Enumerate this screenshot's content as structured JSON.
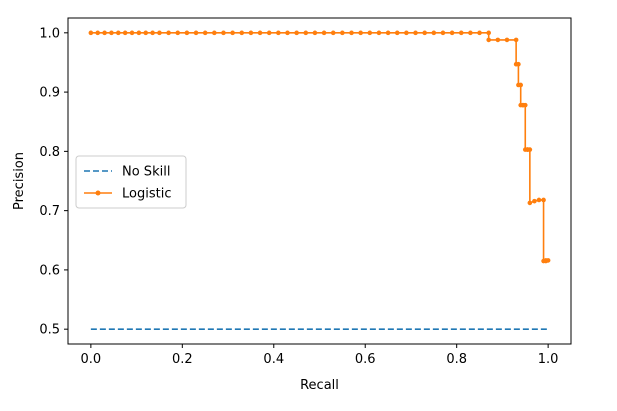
{
  "chart_data": {
    "type": "line",
    "title": "",
    "xlabel": "Recall",
    "ylabel": "Precision",
    "xlim": [
      -0.05,
      1.05
    ],
    "ylim": [
      0.475,
      1.025
    ],
    "x_ticks": [
      0.0,
      0.2,
      0.4,
      0.6,
      0.8,
      1.0
    ],
    "y_ticks": [
      0.5,
      0.6,
      0.7,
      0.8,
      0.9,
      1.0
    ],
    "x_tick_labels": [
      "0.0",
      "0.2",
      "0.4",
      "0.6",
      "0.8",
      "1.0"
    ],
    "y_tick_labels": [
      "0.5",
      "0.6",
      "0.7",
      "0.8",
      "0.9",
      "1.0"
    ],
    "grid": false,
    "legend": {
      "placement": "center-left",
      "entries": [
        "No Skill",
        "Logistic"
      ]
    },
    "series": [
      {
        "name": "No Skill",
        "style": "dashed",
        "color": "#1f77b4",
        "marker": "none",
        "x": [
          0.0,
          1.0
        ],
        "y": [
          0.5,
          0.5
        ]
      },
      {
        "name": "Logistic",
        "style": "solid",
        "color": "#ff7f0e",
        "marker": "dot",
        "x": [
          0.0,
          0.015,
          0.03,
          0.045,
          0.06,
          0.075,
          0.09,
          0.105,
          0.12,
          0.135,
          0.15,
          0.17,
          0.19,
          0.21,
          0.23,
          0.25,
          0.27,
          0.29,
          0.31,
          0.33,
          0.35,
          0.37,
          0.39,
          0.41,
          0.43,
          0.45,
          0.47,
          0.49,
          0.51,
          0.53,
          0.55,
          0.57,
          0.59,
          0.61,
          0.63,
          0.65,
          0.67,
          0.69,
          0.71,
          0.73,
          0.75,
          0.77,
          0.79,
          0.81,
          0.83,
          0.85,
          0.87,
          0.87,
          0.89,
          0.91,
          0.93,
          0.93,
          0.935,
          0.935,
          0.94,
          0.94,
          0.945,
          0.945,
          0.95,
          0.95,
          0.955,
          0.955,
          0.96,
          0.96,
          0.97,
          0.98,
          0.99,
          0.99,
          0.995,
          0.995,
          1.0
        ],
        "y": [
          1.0,
          1.0,
          1.0,
          1.0,
          1.0,
          1.0,
          1.0,
          1.0,
          1.0,
          1.0,
          1.0,
          1.0,
          1.0,
          1.0,
          1.0,
          1.0,
          1.0,
          1.0,
          1.0,
          1.0,
          1.0,
          1.0,
          1.0,
          1.0,
          1.0,
          1.0,
          1.0,
          1.0,
          1.0,
          1.0,
          1.0,
          1.0,
          1.0,
          1.0,
          1.0,
          1.0,
          1.0,
          1.0,
          1.0,
          1.0,
          1.0,
          1.0,
          1.0,
          1.0,
          1.0,
          1.0,
          1.0,
          0.988,
          0.988,
          0.988,
          0.988,
          0.947,
          0.947,
          0.912,
          0.912,
          0.878,
          0.878,
          0.878,
          0.878,
          0.803,
          0.803,
          0.803,
          0.803,
          0.713,
          0.716,
          0.718,
          0.718,
          0.615,
          0.615,
          0.616,
          0.616
        ]
      }
    ]
  }
}
